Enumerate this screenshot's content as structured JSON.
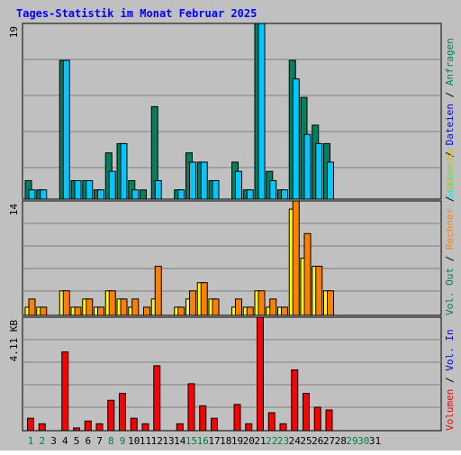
{
  "title": "Tages-Statistik im Monat Februar 2025",
  "colors": {
    "background": "#c0c0c0",
    "grid": "#808080",
    "title": "#0000ff",
    "anfragen": "#00805c",
    "dateien": "#00c8ff",
    "seiten": "#00e8ff",
    "besuche": "#ffff00",
    "rechner": "#ff8000",
    "volume": "#ff0000",
    "weekday_label": "#000000",
    "weekend_label": "#008040"
  },
  "chart_data": [
    {
      "type": "bar",
      "panel": "requests",
      "y_label": "19",
      "ylim": [
        0,
        19
      ],
      "legend": [
        {
          "text": "Anfragen",
          "color": "#00805c"
        },
        {
          "text": "Dateien",
          "color": "#0000ff"
        },
        {
          "text": "Seiten",
          "color": "#00e8ff"
        }
      ],
      "legend_separators": [
        "/",
        "/"
      ],
      "categories": [
        "1",
        "2",
        "3",
        "4",
        "5",
        "6",
        "7",
        "8",
        "9",
        "10",
        "11",
        "12",
        "13",
        "14",
        "15",
        "16",
        "17",
        "18",
        "19",
        "20",
        "21",
        "22",
        "23",
        "24",
        "25",
        "26",
        "27",
        "28",
        "29",
        "30",
        "31"
      ],
      "series": [
        {
          "name": "Anfragen",
          "values": [
            2,
            1,
            0,
            15,
            2,
            2,
            1,
            5,
            6,
            2,
            1,
            10,
            0,
            1,
            5,
            4,
            2,
            0,
            4,
            1,
            19,
            3,
            1,
            15,
            11,
            8,
            6,
            0,
            0,
            0,
            0
          ]
        },
        {
          "name": "Seiten",
          "values": [
            1,
            1,
            0,
            15,
            2,
            2,
            1,
            3,
            6,
            1,
            0,
            2,
            0,
            1,
            4,
            4,
            2,
            0,
            3,
            1,
            19,
            2,
            1,
            13,
            7,
            6,
            4,
            0,
            0,
            0,
            0
          ]
        }
      ]
    },
    {
      "type": "bar",
      "panel": "visits",
      "y_label": "14",
      "ylim": [
        0,
        14
      ],
      "legend": [
        {
          "text": "Besuche",
          "color": "#e0c000"
        },
        {
          "text": "Rechner",
          "color": "#ff8000"
        },
        {
          "text": "Vol. Out",
          "color": "#008040"
        }
      ],
      "legend_separators": [
        "/",
        "/"
      ],
      "categories": [
        "1",
        "2",
        "3",
        "4",
        "5",
        "6",
        "7",
        "8",
        "9",
        "10",
        "11",
        "12",
        "13",
        "14",
        "15",
        "16",
        "17",
        "18",
        "19",
        "20",
        "21",
        "22",
        "23",
        "24",
        "25",
        "26",
        "27",
        "28",
        "29",
        "30",
        "31"
      ],
      "series": [
        {
          "name": "Besuche",
          "values": [
            1,
            1,
            0,
            3,
            1,
            2,
            1,
            3,
            2,
            1,
            0,
            2,
            0,
            1,
            2,
            4,
            2,
            0,
            1,
            1,
            3,
            1,
            1,
            13,
            7,
            6,
            3,
            0,
            0,
            0,
            0
          ]
        },
        {
          "name": "Rechner",
          "values": [
            2,
            1,
            0,
            3,
            1,
            2,
            1,
            3,
            2,
            2,
            1,
            6,
            0,
            1,
            3,
            4,
            2,
            0,
            2,
            1,
            3,
            2,
            1,
            14,
            10,
            6,
            3,
            0,
            0,
            0,
            0
          ]
        }
      ]
    },
    {
      "type": "bar",
      "panel": "volume",
      "y_label": "4.11 KB",
      "ylim": [
        0,
        4.11
      ],
      "legend": [
        {
          "text": "Vol. In",
          "color": "#0000ff"
        },
        {
          "text": "Volumen",
          "color": "#ff0000"
        }
      ],
      "legend_separators": [
        "/"
      ],
      "categories": [
        "1",
        "2",
        "3",
        "4",
        "5",
        "6",
        "7",
        "8",
        "9",
        "10",
        "11",
        "12",
        "13",
        "14",
        "15",
        "16",
        "17",
        "18",
        "19",
        "20",
        "21",
        "22",
        "23",
        "24",
        "25",
        "26",
        "27",
        "28",
        "29",
        "30",
        "31"
      ],
      "series": [
        {
          "name": "Volumen",
          "values": [
            0.45,
            0.25,
            0,
            2.85,
            0.1,
            0.35,
            0.25,
            1.1,
            1.35,
            0.45,
            0.25,
            2.35,
            0,
            0.25,
            1.7,
            0.9,
            0.45,
            0,
            0.95,
            0.25,
            4.11,
            0.65,
            0.25,
            2.2,
            1.35,
            0.85,
            0.75,
            0,
            0,
            0,
            0
          ]
        }
      ]
    }
  ],
  "weekend_days": [
    1,
    2,
    8,
    9,
    15,
    16,
    22,
    23,
    29,
    30
  ]
}
